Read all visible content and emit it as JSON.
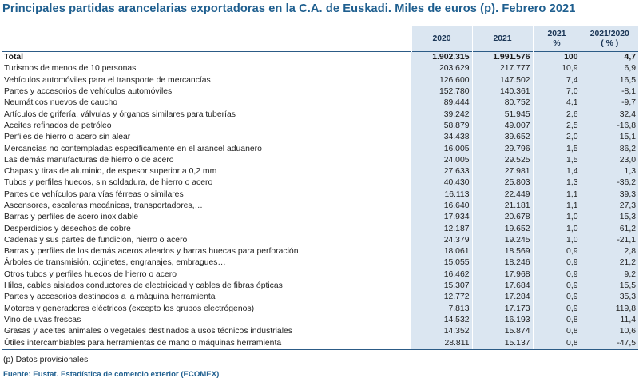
{
  "title": "Principales partidas arancelarias exportadoras en la C.A. de Euskadi. Miles de euros (p). Febrero 2021",
  "headers": {
    "label": "",
    "y2020": "2020",
    "y2021": "2021",
    "pct_line1": "2021",
    "pct_line2": "%",
    "var_line1": "2021/2020",
    "var_line2": "( % )"
  },
  "rows": [
    {
      "label": "Total",
      "v2020": "1.902.315",
      "v2021": "1.991.576",
      "pct": "100",
      "var": "4,7"
    },
    {
      "label": "Turismos de menos de  10 personas",
      "v2020": "203.629",
      "v2021": "217.777",
      "pct": "10,9",
      "var": "6,9"
    },
    {
      "label": "Vehículos automóviles para el transporte de mercancías",
      "v2020": "126.600",
      "v2021": "147.502",
      "pct": "7,4",
      "var": "16,5"
    },
    {
      "label": "Partes y accesorios de vehículos automóviles",
      "v2020": "152.780",
      "v2021": "140.361",
      "pct": "7,0",
      "var": "-8,1"
    },
    {
      "label": "Neumáticos nuevos de caucho",
      "v2020": "89.444",
      "v2021": "80.752",
      "pct": "4,1",
      "var": "-9,7"
    },
    {
      "label": "Artículos de grifería, válvulas y órganos similares para tuberías",
      "v2020": "39.242",
      "v2021": "51.945",
      "pct": "2,6",
      "var": "32,4"
    },
    {
      "label": "Aceites refinados de petróleo",
      "v2020": "58.879",
      "v2021": "49.007",
      "pct": "2,5",
      "var": "-16,8"
    },
    {
      "label": "Perfiles de hierro o acero sin alear",
      "v2020": "34.438",
      "v2021": "39.652",
      "pct": "2,0",
      "var": "15,1"
    },
    {
      "label": "Mercancías no contempladas especificamente en el arancel aduanero",
      "v2020": "16.005",
      "v2021": "29.796",
      "pct": "1,5",
      "var": "86,2"
    },
    {
      "label": "Las demás manufacturas de hierro o de acero",
      "v2020": "24.005",
      "v2021": "29.525",
      "pct": "1,5",
      "var": "23,0"
    },
    {
      "label": "Chapas y tiras de aluminio, de espesor superior a 0,2 mm",
      "v2020": "27.633",
      "v2021": "27.981",
      "pct": "1,4",
      "var": "1,3"
    },
    {
      "label": "Tubos y perfiles huecos, sin soldadura, de hierro o acero",
      "v2020": "40.430",
      "v2021": "25.803",
      "pct": "1,3",
      "var": "-36,2"
    },
    {
      "label": "Partes de vehículos para vías férreas o similares",
      "v2020": "16.113",
      "v2021": "22.449",
      "pct": "1,1",
      "var": "39,3"
    },
    {
      "label": "Ascensores, escaleras mecánicas, transportadores,…",
      "v2020": "16.640",
      "v2021": "21.181",
      "pct": "1,1",
      "var": "27,3"
    },
    {
      "label": "Barras y perfiles de acero inoxidable",
      "v2020": "17.934",
      "v2021": "20.678",
      "pct": "1,0",
      "var": "15,3"
    },
    {
      "label": "Desperdicios y desechos de cobre",
      "v2020": "12.187",
      "v2021": "19.652",
      "pct": "1,0",
      "var": "61,2"
    },
    {
      "label": "Cadenas y sus partes de fundicion, hierro o acero",
      "v2020": "24.379",
      "v2021": "19.245",
      "pct": "1,0",
      "var": "-21,1"
    },
    {
      "label": "Barras y perfiles de los demás aceros aleados y barras huecas para perforación",
      "v2020": "18.061",
      "v2021": "18.569",
      "pct": "0,9",
      "var": "2,8"
    },
    {
      "label": "Árboles de transmisión, cojinetes, engranajes, embragues…",
      "v2020": "15.055",
      "v2021": "18.246",
      "pct": "0,9",
      "var": "21,2"
    },
    {
      "label": "Otros tubos y perfiles huecos de hierro o acero",
      "v2020": "16.462",
      "v2021": "17.968",
      "pct": "0,9",
      "var": "9,2"
    },
    {
      "label": "Hilos, cables aislados conductores de electricidad y cables de fibras ópticas",
      "v2020": "15.307",
      "v2021": "17.684",
      "pct": "0,9",
      "var": "15,5"
    },
    {
      "label": "Partes y accesorios destinados a la máquina herramienta",
      "v2020": "12.772",
      "v2021": "17.284",
      "pct": "0,9",
      "var": "35,3"
    },
    {
      "label": "Motores y generadores eléctricos (excepto los grupos electrógenos)",
      "v2020": "7.813",
      "v2021": "17.173",
      "pct": "0,9",
      "var": "119,8"
    },
    {
      "label": "Vino de uvas frescas",
      "v2020": "14.532",
      "v2021": "16.193",
      "pct": "0,8",
      "var": "11,4"
    },
    {
      "label": "Grasas y aceites animales o vegetales destinados a usos técnicos  industriales",
      "v2020": "14.352",
      "v2021": "15.874",
      "pct": "0,8",
      "var": "10,6"
    },
    {
      "label": "Útiles intercambiables para herramientas de mano o máquinas herramienta",
      "v2020": "28.811",
      "v2021": "15.137",
      "pct": "0,8",
      "var": "-47,5"
    }
  ],
  "note": "(p) Datos provisionales",
  "source": "Fuente: Eustat. Estadística de comercio exterior (ECOMEX)",
  "colors": {
    "title": "#1f5f8f",
    "header_shade": "#dbe6f1",
    "rule": "#2c5b86"
  }
}
